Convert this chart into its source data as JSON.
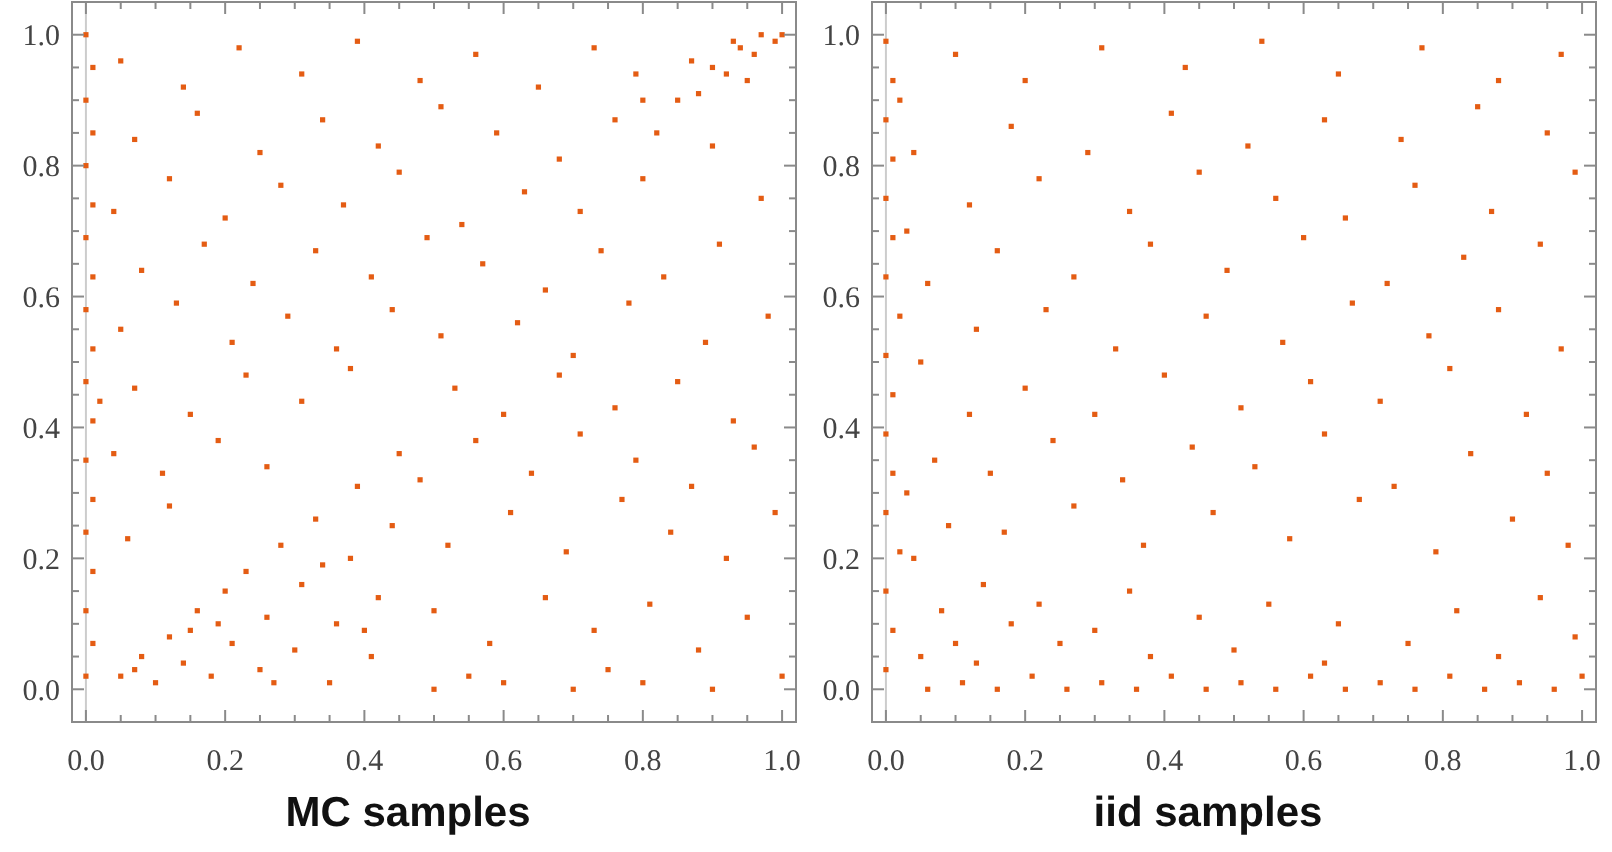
{
  "chart_data": [
    {
      "type": "scatter",
      "xlabel": "MC samples",
      "color": "#e45c13",
      "marker": "square",
      "xlim": [
        -0.02,
        1.02
      ],
      "ylim": [
        -0.05,
        1.05
      ],
      "xticks": [
        {
          "value": 0,
          "label": "0.0"
        },
        {
          "value": 0.05,
          "label": null
        },
        {
          "value": 0.1,
          "label": null
        },
        {
          "value": 0.15,
          "label": null
        },
        {
          "value": 0.2,
          "label": "0.2"
        },
        {
          "value": 0.25,
          "label": null
        },
        {
          "value": 0.3,
          "label": null
        },
        {
          "value": 0.35,
          "label": null
        },
        {
          "value": 0.4,
          "label": "0.4"
        },
        {
          "value": 0.45,
          "label": null
        },
        {
          "value": 0.5,
          "label": null
        },
        {
          "value": 0.55,
          "label": null
        },
        {
          "value": 0.6,
          "label": "0.6"
        },
        {
          "value": 0.65,
          "label": null
        },
        {
          "value": 0.7,
          "label": null
        },
        {
          "value": 0.75,
          "label": null
        },
        {
          "value": 0.8,
          "label": "0.8"
        },
        {
          "value": 0.85,
          "label": null
        },
        {
          "value": 0.9,
          "label": null
        },
        {
          "value": 0.95,
          "label": null
        },
        {
          "value": 1,
          "label": "1.0"
        }
      ],
      "yticks": [
        {
          "value": 0,
          "label": "0.0"
        },
        {
          "value": 0.05,
          "label": null
        },
        {
          "value": 0.1,
          "label": null
        },
        {
          "value": 0.15,
          "label": null
        },
        {
          "value": 0.2,
          "label": "0.2"
        },
        {
          "value": 0.25,
          "label": null
        },
        {
          "value": 0.3,
          "label": null
        },
        {
          "value": 0.35,
          "label": null
        },
        {
          "value": 0.4,
          "label": "0.4"
        },
        {
          "value": 0.45,
          "label": null
        },
        {
          "value": 0.5,
          "label": null
        },
        {
          "value": 0.55,
          "label": null
        },
        {
          "value": 0.6,
          "label": "0.6"
        },
        {
          "value": 0.65,
          "label": null
        },
        {
          "value": 0.7,
          "label": null
        },
        {
          "value": 0.75,
          "label": null
        },
        {
          "value": 0.8,
          "label": "0.8"
        },
        {
          "value": 0.85,
          "label": null
        },
        {
          "value": 0.9,
          "label": null
        },
        {
          "value": 0.95,
          "label": null
        },
        {
          "value": 1,
          "label": "1.0"
        }
      ],
      "ref_lines": [
        {
          "axis": "x",
          "value": 0,
          "color": "#cccccc"
        }
      ],
      "x": [
        0,
        0.01,
        0,
        0.01,
        0,
        0.01,
        0,
        0.01,
        0,
        0.01,
        0,
        0.01,
        0,
        0.01,
        0,
        0.01,
        0,
        0.01,
        0,
        0.02,
        0.05,
        0.08,
        0.1,
        0.12,
        0.14,
        0.16,
        0.18,
        0.2,
        0.21,
        0.23,
        0.25,
        0.26,
        0.28,
        0.3,
        0.31,
        0.33,
        0.35,
        0.36,
        0.38,
        0.39,
        0.41,
        0.42,
        0.44,
        0.45,
        0.15,
        0.07,
        0.27,
        0.34,
        0.4,
        0.19,
        0.82,
        0.85,
        0.88,
        0.9,
        0.92,
        0.94,
        0.96,
        0.97,
        0.99,
        1,
        0.87,
        0.93,
        0.8,
        0.95,
        0.5,
        0.6,
        0.7,
        0.8,
        0.9,
        1,
        0.55,
        0.75,
        0.5,
        0.58,
        0.66,
        0.73,
        0.81,
        0.88,
        0.95,
        0.06,
        0.12,
        0.52,
        0.61,
        0.69,
        0.77,
        0.84,
        0.92,
        0.99,
        0.04,
        0.11,
        0.19,
        0.26,
        0.48,
        0.56,
        0.64,
        0.71,
        0.79,
        0.87,
        0.96,
        0.07,
        0.15,
        0.23,
        0.31,
        0.38,
        0.53,
        0.6,
        0.68,
        0.76,
        0.85,
        0.93,
        0.05,
        0.13,
        0.21,
        0.29,
        0.36,
        0.44,
        0.51,
        0.62,
        0.7,
        0.78,
        0.89,
        0.98,
        0.08,
        0.17,
        0.24,
        0.33,
        0.41,
        0.49,
        0.57,
        0.66,
        0.74,
        0.83,
        0.91,
        0.04,
        0.12,
        0.2,
        0.28,
        0.37,
        0.45,
        0.54,
        0.63,
        0.71,
        0.8,
        0.97,
        0.07,
        0.16,
        0.25,
        0.34,
        0.42,
        0.51,
        0.59,
        0.68,
        0.76,
        0.9,
        0.05,
        0.14,
        0.22,
        0.31,
        0.39,
        0.48,
        0.56,
        0.65,
        0.73,
        0.79
      ],
      "values": [
        0.02,
        0.07,
        0.12,
        0.18,
        0.24,
        0.29,
        0.35,
        0.41,
        0.47,
        0.52,
        0.58,
        0.63,
        0.69,
        0.74,
        0.8,
        0.85,
        0.9,
        0.95,
        1,
        0.44,
        0.02,
        0.05,
        0.01,
        0.08,
        0.04,
        0.12,
        0.02,
        0.15,
        0.07,
        0.18,
        0.03,
        0.11,
        0.22,
        0.06,
        0.16,
        0.26,
        0.01,
        0.1,
        0.2,
        0.31,
        0.05,
        0.14,
        0.25,
        0.36,
        0.09,
        0.03,
        0.01,
        0.19,
        0.09,
        0.1,
        0.85,
        0.9,
        0.91,
        0.95,
        0.94,
        0.98,
        0.97,
        1,
        0.99,
        1,
        0.96,
        0.99,
        0.9,
        0.93,
        0,
        0.01,
        0,
        0.01,
        0,
        0.02,
        0.02,
        0.03,
        0.12,
        0.07,
        0.14,
        0.09,
        0.13,
        0.06,
        0.11,
        0.23,
        0.28,
        0.22,
        0.27,
        0.21,
        0.29,
        0.24,
        0.2,
        0.27,
        0.36,
        0.33,
        0.38,
        0.34,
        0.32,
        0.38,
        0.33,
        0.39,
        0.35,
        0.31,
        0.37,
        0.46,
        0.42,
        0.48,
        0.44,
        0.49,
        0.46,
        0.42,
        0.48,
        0.43,
        0.47,
        0.41,
        0.55,
        0.59,
        0.53,
        0.57,
        0.52,
        0.58,
        0.54,
        0.56,
        0.51,
        0.59,
        0.53,
        0.57,
        0.64,
        0.68,
        0.62,
        0.67,
        0.63,
        0.69,
        0.65,
        0.61,
        0.67,
        0.63,
        0.68,
        0.73,
        0.78,
        0.72,
        0.77,
        0.74,
        0.79,
        0.71,
        0.76,
        0.73,
        0.78,
        0.75,
        0.84,
        0.88,
        0.82,
        0.87,
        0.83,
        0.89,
        0.85,
        0.81,
        0.87,
        0.83,
        0.96,
        0.92,
        0.98,
        0.94,
        0.99,
        0.93,
        0.97,
        0.92,
        0.98,
        0.94
      ]
    },
    {
      "type": "scatter",
      "xlabel": "iid samples",
      "color": "#e45c13",
      "marker": "square",
      "xlim": [
        -0.02,
        1.02
      ],
      "ylim": [
        -0.05,
        1.05
      ],
      "xticks": [
        {
          "value": 0,
          "label": "0.0"
        },
        {
          "value": 0.05,
          "label": null
        },
        {
          "value": 0.1,
          "label": null
        },
        {
          "value": 0.15,
          "label": null
        },
        {
          "value": 0.2,
          "label": "0.2"
        },
        {
          "value": 0.25,
          "label": null
        },
        {
          "value": 0.3,
          "label": null
        },
        {
          "value": 0.35,
          "label": null
        },
        {
          "value": 0.4,
          "label": "0.4"
        },
        {
          "value": 0.45,
          "label": null
        },
        {
          "value": 0.5,
          "label": null
        },
        {
          "value": 0.55,
          "label": null
        },
        {
          "value": 0.6,
          "label": "0.6"
        },
        {
          "value": 0.65,
          "label": null
        },
        {
          "value": 0.7,
          "label": null
        },
        {
          "value": 0.75,
          "label": null
        },
        {
          "value": 0.8,
          "label": "0.8"
        },
        {
          "value": 0.85,
          "label": null
        },
        {
          "value": 0.9,
          "label": null
        },
        {
          "value": 0.95,
          "label": null
        },
        {
          "value": 1,
          "label": "1.0"
        }
      ],
      "yticks": [
        {
          "value": 0,
          "label": "0.0"
        },
        {
          "value": 0.05,
          "label": null
        },
        {
          "value": 0.1,
          "label": null
        },
        {
          "value": 0.15,
          "label": null
        },
        {
          "value": 0.2,
          "label": "0.2"
        },
        {
          "value": 0.25,
          "label": null
        },
        {
          "value": 0.3,
          "label": null
        },
        {
          "value": 0.35,
          "label": null
        },
        {
          "value": 0.4,
          "label": "0.4"
        },
        {
          "value": 0.45,
          "label": null
        },
        {
          "value": 0.5,
          "label": null
        },
        {
          "value": 0.55,
          "label": null
        },
        {
          "value": 0.6,
          "label": "0.6"
        },
        {
          "value": 0.65,
          "label": null
        },
        {
          "value": 0.7,
          "label": null
        },
        {
          "value": 0.75,
          "label": null
        },
        {
          "value": 0.8,
          "label": "0.8"
        },
        {
          "value": 0.85,
          "label": null
        },
        {
          "value": 0.9,
          "label": null
        },
        {
          "value": 0.95,
          "label": null
        },
        {
          "value": 1,
          "label": "1.0"
        }
      ],
      "ref_lines": [
        {
          "axis": "x",
          "value": 0,
          "color": "#cccccc"
        }
      ],
      "x": [
        0,
        0.01,
        0,
        0.02,
        0,
        0.01,
        0,
        0.01,
        0,
        0.02,
        0,
        0.01,
        0,
        0.01,
        0,
        0.01,
        0,
        0.03,
        0.03,
        0.02,
        0.06,
        0.11,
        0.16,
        0.21,
        0.26,
        0.31,
        0.36,
        0.41,
        0.46,
        0.51,
        0.56,
        0.61,
        0.66,
        0.71,
        0.76,
        0.81,
        0.86,
        0.91,
        0.96,
        1,
        0.13,
        0.38,
        0.63,
        0.88,
        0.5,
        0.25,
        0.75,
        0.99,
        0.05,
        0.08,
        0.04,
        0.1,
        0.07,
        0.05,
        0.06,
        0.09,
        0.18,
        0.14,
        0.22,
        0.3,
        0.35,
        0.45,
        0.55,
        0.65,
        0.82,
        0.94,
        0.12,
        0.04,
        0.17,
        0.27,
        0.37,
        0.47,
        0.58,
        0.68,
        0.79,
        0.9,
        0.98,
        0.15,
        0.24,
        0.34,
        0.44,
        0.53,
        0.63,
        0.73,
        0.84,
        0.95,
        0.2,
        0.3,
        0.4,
        0.51,
        0.61,
        0.71,
        0.81,
        0.92,
        0.13,
        0.23,
        0.33,
        0.46,
        0.57,
        0.67,
        0.78,
        0.88,
        0.97,
        0.16,
        0.27,
        0.38,
        0.49,
        0.6,
        0.72,
        0.83,
        0.94,
        0.12,
        0.22,
        0.35,
        0.45,
        0.56,
        0.66,
        0.76,
        0.87,
        0.99,
        0.18,
        0.29,
        0.41,
        0.52,
        0.63,
        0.74,
        0.85,
        0.95,
        0.1,
        0.2,
        0.31,
        0.43,
        0.54,
        0.65,
        0.77,
        0.88,
        0.97
      ],
      "values": [
        0.03,
        0.09,
        0.15,
        0.21,
        0.27,
        0.33,
        0.39,
        0.45,
        0.51,
        0.57,
        0.63,
        0.69,
        0.75,
        0.81,
        0.87,
        0.93,
        0.99,
        0.3,
        0.7,
        0.9,
        0,
        0.01,
        0,
        0.02,
        0,
        0.01,
        0,
        0.02,
        0,
        0.01,
        0,
        0.02,
        0,
        0.01,
        0,
        0.02,
        0,
        0.01,
        0,
        0.02,
        0.04,
        0.05,
        0.04,
        0.05,
        0.06,
        0.07,
        0.07,
        0.08,
        0.05,
        0.12,
        0.2,
        0.07,
        0.35,
        0.5,
        0.62,
        0.25,
        0.1,
        0.16,
        0.13,
        0.09,
        0.15,
        0.11,
        0.13,
        0.1,
        0.12,
        0.14,
        0.42,
        0.82,
        0.24,
        0.28,
        0.22,
        0.27,
        0.23,
        0.29,
        0.21,
        0.26,
        0.22,
        0.33,
        0.38,
        0.32,
        0.37,
        0.34,
        0.39,
        0.31,
        0.36,
        0.33,
        0.46,
        0.42,
        0.48,
        0.43,
        0.47,
        0.44,
        0.49,
        0.42,
        0.55,
        0.58,
        0.52,
        0.57,
        0.53,
        0.59,
        0.54,
        0.58,
        0.52,
        0.67,
        0.63,
        0.68,
        0.64,
        0.69,
        0.62,
        0.66,
        0.68,
        0.74,
        0.78,
        0.73,
        0.79,
        0.75,
        0.72,
        0.77,
        0.73,
        0.79,
        0.86,
        0.82,
        0.88,
        0.83,
        0.87,
        0.84,
        0.89,
        0.85,
        0.97,
        0.93,
        0.98,
        0.95,
        0.99,
        0.94,
        0.98,
        0.93,
        0.97
      ]
    }
  ]
}
